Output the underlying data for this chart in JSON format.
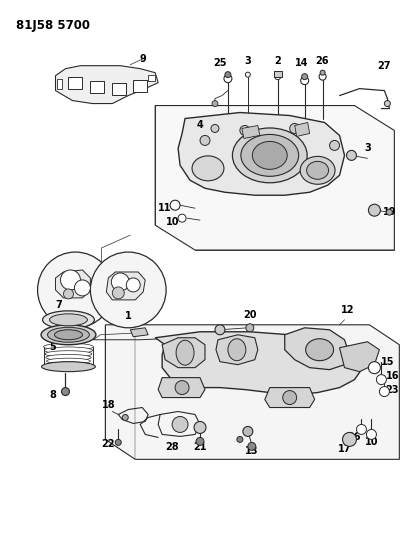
{
  "title": "81J58 5700",
  "bg_color": "#ffffff",
  "line_color": "#2a2a2a",
  "text_color": "#000000",
  "title_fontsize": 8.5,
  "label_fontsize": 7,
  "fig_width": 4.09,
  "fig_height": 5.33,
  "dpi": 100
}
